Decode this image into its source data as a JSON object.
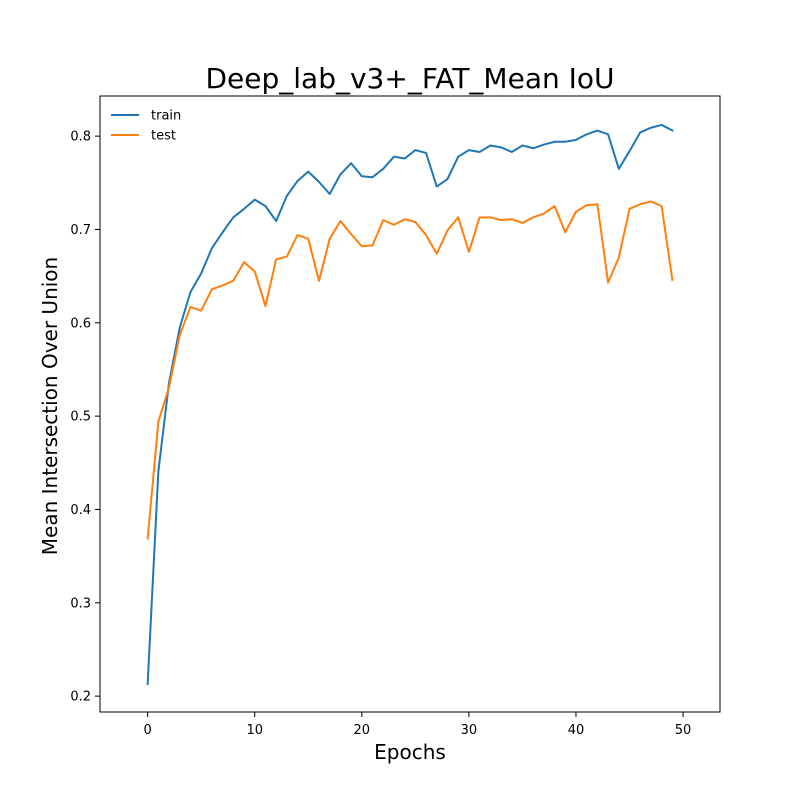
{
  "chart_data": {
    "type": "line",
    "title": "Deep_lab_v3+_FAT_Mean IoU",
    "xlabel": "Epochs",
    "ylabel": "Mean Intersection Over Union",
    "xlim": [
      -4.45,
      53.45
    ],
    "ylim": [
      0.183,
      0.843
    ],
    "xticks": [
      0,
      10,
      20,
      30,
      40,
      50
    ],
    "yticks": [
      0.2,
      0.3,
      0.4,
      0.5,
      0.6,
      0.7,
      0.8
    ],
    "legend_position": "upper-left",
    "grid": false,
    "x": [
      0,
      1,
      2,
      3,
      4,
      5,
      6,
      7,
      8,
      9,
      10,
      11,
      12,
      13,
      14,
      15,
      16,
      17,
      18,
      19,
      20,
      21,
      22,
      23,
      24,
      25,
      26,
      27,
      28,
      29,
      30,
      31,
      32,
      33,
      34,
      35,
      36,
      37,
      38,
      39,
      40,
      41,
      42,
      43,
      44,
      45,
      46,
      47,
      48,
      49
    ],
    "series": [
      {
        "name": "train",
        "color": "#1f77b4",
        "values": [
          0.213,
          0.441,
          0.536,
          0.595,
          0.633,
          0.653,
          0.68,
          0.697,
          0.713,
          0.722,
          0.732,
          0.725,
          0.709,
          0.736,
          0.752,
          0.762,
          0.751,
          0.738,
          0.759,
          0.771,
          0.757,
          0.756,
          0.765,
          0.778,
          0.776,
          0.785,
          0.782,
          0.746,
          0.754,
          0.778,
          0.785,
          0.783,
          0.79,
          0.788,
          0.783,
          0.79,
          0.787,
          0.791,
          0.794,
          0.794,
          0.796,
          0.802,
          0.806,
          0.802,
          0.765,
          0.784,
          0.804,
          0.809,
          0.812,
          0.806
        ]
      },
      {
        "name": "test",
        "color": "#ff7f0e",
        "values": [
          0.369,
          0.494,
          0.531,
          0.587,
          0.617,
          0.613,
          0.636,
          0.64,
          0.645,
          0.665,
          0.655,
          0.618,
          0.668,
          0.671,
          0.694,
          0.69,
          0.645,
          0.69,
          0.709,
          0.695,
          0.682,
          0.683,
          0.71,
          0.705,
          0.711,
          0.708,
          0.694,
          0.674,
          0.699,
          0.713,
          0.676,
          0.713,
          0.713,
          0.71,
          0.711,
          0.707,
          0.713,
          0.717,
          0.725,
          0.697,
          0.719,
          0.726,
          0.727,
          0.643,
          0.67,
          0.722,
          0.727,
          0.73,
          0.725,
          0.646
        ]
      }
    ]
  }
}
